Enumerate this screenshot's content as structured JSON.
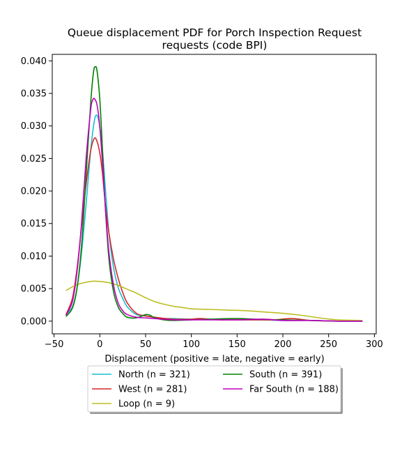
{
  "chart_data": {
    "type": "line",
    "title_lines": [
      "Queue displacement PDF for Porch Inspection Request",
      "requests (code BPI)"
    ],
    "xlabel": "Displacement (positive = late, negative = early)",
    "ylabel": "",
    "xlim": [
      -52,
      302
    ],
    "ylim": [
      -0.00195,
      0.041
    ],
    "xticks": [
      -50,
      0,
      50,
      100,
      150,
      200,
      250,
      300
    ],
    "xtick_labels": [
      "−50",
      "0",
      "50",
      "100",
      "150",
      "200",
      "250",
      "300"
    ],
    "yticks": [
      0.0,
      0.005,
      0.01,
      0.015,
      0.02,
      0.025,
      0.03,
      0.035,
      0.04
    ],
    "ytick_labels": [
      "0.000",
      "0.005",
      "0.010",
      "0.015",
      "0.020",
      "0.025",
      "0.030",
      "0.035",
      "0.040"
    ],
    "grid": false,
    "legend_placement": "below-center",
    "series": [
      {
        "name": "North (n = 321)",
        "color": "#17becf",
        "x": [
          -37,
          -30,
          -25,
          -20,
          -15,
          -10,
          -6,
          -3,
          0,
          3,
          6,
          10,
          15,
          20,
          25,
          30,
          40,
          50,
          60,
          70,
          80,
          100,
          120,
          150,
          180,
          200,
          230,
          260,
          287
        ],
        "y": [
          0.001,
          0.0022,
          0.005,
          0.0105,
          0.018,
          0.0262,
          0.0308,
          0.0316,
          0.0298,
          0.026,
          0.0205,
          0.0135,
          0.0082,
          0.0052,
          0.0035,
          0.0022,
          0.001,
          0.0008,
          0.0006,
          0.0004,
          0.0004,
          0.0003,
          0.0003,
          0.0002,
          0.0002,
          0.0001,
          0.0001,
          0.0,
          0.0
        ]
      },
      {
        "name": "West (n = 281)",
        "color": "#d62728",
        "x": [
          -37,
          -30,
          -25,
          -20,
          -15,
          -10,
          -6,
          -3,
          0,
          3,
          6,
          10,
          15,
          20,
          25,
          30,
          40,
          50,
          60,
          80,
          100,
          110,
          130,
          150,
          170,
          190,
          210,
          230,
          260,
          287
        ],
        "y": [
          0.001,
          0.0035,
          0.008,
          0.0145,
          0.021,
          0.0262,
          0.0281,
          0.0276,
          0.0258,
          0.0225,
          0.018,
          0.0135,
          0.0095,
          0.0066,
          0.0044,
          0.0028,
          0.0012,
          0.0008,
          0.0006,
          0.0003,
          0.0003,
          0.0004,
          0.0002,
          0.0002,
          0.0002,
          0.0002,
          0.0004,
          0.0001,
          0.0,
          0.0
        ]
      },
      {
        "name": "Loop (n = 9)",
        "color": "#bcbd22",
        "x": [
          -37,
          -25,
          -10,
          0,
          10,
          20,
          30,
          40,
          50,
          60,
          70,
          80,
          90,
          100,
          120,
          140,
          160,
          180,
          200,
          220,
          240,
          260,
          287
        ],
        "y": [
          0.0047,
          0.0056,
          0.0061,
          0.0061,
          0.0059,
          0.0055,
          0.0049,
          0.0043,
          0.0036,
          0.003,
          0.0026,
          0.0023,
          0.0021,
          0.0019,
          0.0018,
          0.0017,
          0.0016,
          0.0014,
          0.0012,
          0.0009,
          0.0005,
          0.0002,
          0.0001
        ]
      },
      {
        "name": "South (n = 391)",
        "color": "#008000",
        "x": [
          -37,
          -30,
          -25,
          -20,
          -15,
          -10,
          -7,
          -5,
          -3,
          0,
          3,
          6,
          10,
          15,
          20,
          25,
          30,
          40,
          50,
          55,
          60,
          70,
          80,
          100,
          120,
          150,
          170,
          200,
          230,
          260,
          287
        ],
        "y": [
          0.0007,
          0.002,
          0.005,
          0.0115,
          0.0225,
          0.0335,
          0.0382,
          0.0391,
          0.0384,
          0.034,
          0.026,
          0.0175,
          0.0095,
          0.0045,
          0.0022,
          0.0012,
          0.0006,
          0.0005,
          0.001,
          0.0009,
          0.0005,
          0.0002,
          0.0001,
          0.0002,
          0.0003,
          0.0004,
          0.0003,
          0.0002,
          0.0001,
          0.0,
          0.0
        ]
      },
      {
        "name": "Far South (n = 188)",
        "color": "#bf00bf",
        "x": [
          -37,
          -30,
          -25,
          -20,
          -15,
          -10,
          -8,
          -6,
          -3,
          0,
          3,
          6,
          10,
          15,
          20,
          25,
          30,
          40,
          50,
          60,
          80,
          100,
          120,
          150,
          180,
          200,
          230,
          260,
          287
        ],
        "y": [
          0.0009,
          0.003,
          0.0075,
          0.015,
          0.025,
          0.0325,
          0.0339,
          0.0342,
          0.0332,
          0.0298,
          0.024,
          0.0175,
          0.0105,
          0.0055,
          0.0028,
          0.0016,
          0.001,
          0.0006,
          0.0005,
          0.0004,
          0.0002,
          0.0002,
          0.0002,
          0.0002,
          0.0003,
          0.0001,
          0.0001,
          0.0,
          0.0
        ]
      }
    ]
  }
}
